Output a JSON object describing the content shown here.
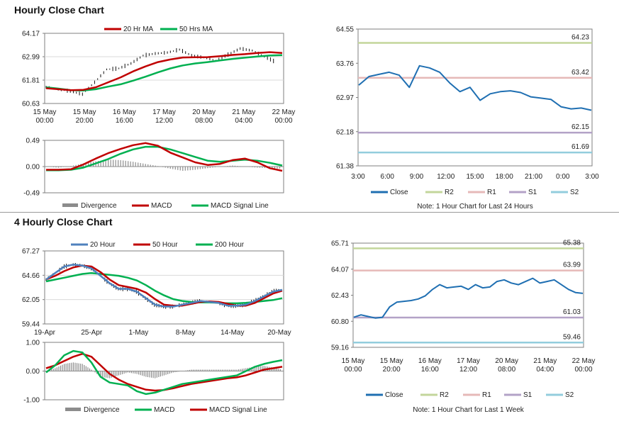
{
  "sections": {
    "hourly_title": "Hourly Close Chart",
    "four_hourly_title": "4 Hourly Close Chart"
  },
  "colors": {
    "close": "#1f6fb2",
    "r2": "#c3d69b",
    "r1": "#e6b9b8",
    "s1": "#b3a2c7",
    "s2": "#93cddd",
    "ma_short": "#c00000",
    "ma_long": "#00b050",
    "ma_20h_4h": "#4f81bd",
    "divergence": "#8c8c8c",
    "macd_red": "#c00000",
    "signal_green": "#00b050"
  },
  "chart_data": [
    {
      "id": "hourly-price",
      "type": "line",
      "title": "",
      "series": [
        {
          "name": "20 Hr MA",
          "values": [
            61.4,
            61.35,
            61.3,
            61.32,
            61.45,
            61.7,
            61.95,
            62.25,
            62.5,
            62.72,
            62.85,
            62.95,
            62.96,
            62.97,
            63.02,
            63.08,
            63.12,
            63.18,
            63.22,
            63.18
          ]
        },
        {
          "name": "50 Hrs MA",
          "values": [
            61.45,
            61.38,
            61.3,
            61.28,
            61.35,
            61.48,
            61.6,
            61.78,
            61.98,
            62.2,
            62.4,
            62.55,
            62.65,
            62.72,
            62.8,
            62.88,
            62.94,
            63.0,
            63.05,
            63.07
          ]
        }
      ],
      "price_close": [
        61.45,
        61.35,
        61.25,
        61.1,
        61.7,
        62.35,
        62.4,
        62.65,
        63.05,
        63.15,
        63.2,
        63.35,
        63.05,
        62.95,
        62.8,
        63.1,
        63.4,
        63.3,
        63.0,
        62.7
      ],
      "x_tick_labels": [
        "15 May\n00:00",
        "15 May\n20:00",
        "16 May\n16:00",
        "17 May\n12:00",
        "20 May\n08:00",
        "21 May\n04:00",
        "22 May\n00:00"
      ],
      "y_tick_labels": [
        "64.17",
        "62.99",
        "61.81",
        "60.63"
      ],
      "ylim": [
        60.63,
        64.17
      ]
    },
    {
      "id": "hourly-macd",
      "type": "line",
      "series": [
        {
          "name": "Divergence",
          "values": [
            0.0,
            -0.02,
            0.01,
            0.06,
            0.1,
            0.13,
            0.12,
            0.09,
            0.05,
            0.01,
            -0.04,
            -0.08,
            -0.06,
            -0.03,
            0.0,
            0.02,
            0.0,
            -0.02,
            -0.03,
            -0.04
          ]
        },
        {
          "name": "MACD",
          "values": [
            -0.06,
            -0.06,
            -0.05,
            0.04,
            0.15,
            0.25,
            0.33,
            0.4,
            0.44,
            0.39,
            0.26,
            0.17,
            0.08,
            0.03,
            0.05,
            0.12,
            0.15,
            0.08,
            -0.03,
            -0.08
          ]
        },
        {
          "name": "MACD Signal Line",
          "values": [
            -0.07,
            -0.07,
            -0.06,
            -0.02,
            0.06,
            0.14,
            0.24,
            0.32,
            0.37,
            0.37,
            0.32,
            0.25,
            0.18,
            0.11,
            0.09,
            0.11,
            0.13,
            0.11,
            0.07,
            0.02
          ]
        }
      ],
      "y_tick_labels": [
        "0.49",
        "0.00",
        "-0.49"
      ],
      "ylim": [
        -0.49,
        0.49
      ]
    },
    {
      "id": "hourly-close-24h",
      "type": "line",
      "series": [
        {
          "name": "Close",
          "values": [
            63.25,
            63.45,
            63.5,
            63.55,
            63.48,
            63.2,
            63.7,
            63.65,
            63.55,
            63.3,
            63.1,
            63.2,
            62.9,
            63.05,
            63.1,
            63.12,
            63.08,
            62.98,
            62.95,
            62.92,
            62.75,
            62.7,
            62.72,
            62.67
          ]
        }
      ],
      "levels": [
        {
          "name": "R2",
          "value": 64.23,
          "label": "64.23"
        },
        {
          "name": "R1",
          "value": 63.42,
          "label": "63.42"
        },
        {
          "name": "S1",
          "value": 62.15,
          "label": "62.15"
        },
        {
          "name": "S2",
          "value": 61.69,
          "label": "61.69"
        }
      ],
      "x_tick_labels": [
        "3:00",
        "6:00",
        "9:00",
        "12:00",
        "15:00",
        "18:00",
        "21:00",
        "0:00",
        "3:00"
      ],
      "y_tick_labels": [
        "64.55",
        "63.76",
        "62.97",
        "62.18",
        "61.38"
      ],
      "ylim": [
        61.38,
        64.55
      ],
      "legend": [
        "Close",
        "R2",
        "R1",
        "S1",
        "S2"
      ],
      "note": "Note: 1 Hour Chart for Last 24 Hours"
    },
    {
      "id": "four-hourly-price",
      "type": "line",
      "series": [
        {
          "name": "20 Hour",
          "values": [
            64.2,
            64.9,
            65.6,
            65.8,
            65.7,
            65.4,
            64.6,
            63.8,
            63.2,
            63.2,
            62.9,
            62.2,
            61.5,
            61.3,
            61.3,
            61.5,
            61.7,
            61.9,
            61.8,
            61.7,
            61.4,
            61.4,
            61.5,
            61.9,
            62.4,
            62.9,
            63.1
          ]
        },
        {
          "name": "50 Hour",
          "values": [
            64.2,
            64.6,
            65.1,
            65.5,
            65.7,
            65.6,
            65.0,
            64.2,
            63.6,
            63.4,
            63.2,
            62.8,
            62.1,
            61.5,
            61.4,
            61.4,
            61.6,
            61.8,
            61.85,
            61.8,
            61.6,
            61.4,
            61.4,
            61.7,
            62.2,
            62.7,
            63.0
          ]
        },
        {
          "name": "200 Hour",
          "values": [
            64.0,
            64.2,
            64.4,
            64.6,
            64.8,
            64.9,
            64.8,
            64.7,
            64.6,
            64.4,
            64.1,
            63.6,
            63.0,
            62.5,
            62.1,
            61.9,
            61.8,
            61.75,
            61.75,
            61.7,
            61.65,
            61.65,
            61.7,
            61.8,
            61.9,
            62.0,
            62.2
          ]
        }
      ],
      "x_tick_labels": [
        "19-Apr",
        "25-Apr",
        "1-May",
        "8-May",
        "14-May",
        "20-May"
      ],
      "y_tick_labels": [
        "67.27",
        "64.66",
        "62.05",
        "59.44"
      ],
      "ylim": [
        59.44,
        67.27
      ]
    },
    {
      "id": "four-hourly-macd",
      "type": "line",
      "series": [
        {
          "name": "Divergence",
          "values": [
            0.0,
            0.1,
            0.25,
            0.3,
            0.25,
            0.05,
            -0.2,
            -0.25,
            -0.15,
            -0.05,
            -0.1,
            -0.2,
            -0.25,
            -0.15,
            -0.05,
            0.0,
            0.05,
            0.05,
            0.05,
            0.05,
            0.05,
            0.05,
            0.1,
            0.15,
            0.18,
            0.12,
            0.05
          ]
        },
        {
          "name": "MACD",
          "values": [
            -0.05,
            0.2,
            0.55,
            0.7,
            0.65,
            0.3,
            -0.2,
            -0.4,
            -0.45,
            -0.5,
            -0.7,
            -0.8,
            -0.75,
            -0.65,
            -0.55,
            -0.45,
            -0.4,
            -0.35,
            -0.3,
            -0.25,
            -0.2,
            -0.15,
            0.0,
            0.15,
            0.25,
            0.32,
            0.38
          ]
        },
        {
          "name": "MACD Signal Line",
          "values": [
            0.1,
            0.2,
            0.35,
            0.5,
            0.6,
            0.5,
            0.2,
            -0.1,
            -0.3,
            -0.45,
            -0.55,
            -0.65,
            -0.68,
            -0.66,
            -0.6,
            -0.52,
            -0.45,
            -0.4,
            -0.35,
            -0.3,
            -0.25,
            -0.22,
            -0.15,
            -0.05,
            0.05,
            0.1,
            0.15
          ]
        }
      ],
      "y_tick_labels": [
        "1.00",
        "0.00",
        "-1.00"
      ],
      "ylim": [
        -1.0,
        1.0
      ]
    },
    {
      "id": "hourly-close-1w",
      "type": "line",
      "series": [
        {
          "name": "Close",
          "values": [
            61.05,
            61.2,
            61.1,
            61.0,
            61.05,
            61.7,
            62.0,
            62.05,
            62.1,
            62.2,
            62.4,
            62.8,
            63.1,
            62.9,
            62.95,
            63.0,
            62.8,
            63.1,
            62.9,
            62.95,
            63.3,
            63.4,
            63.2,
            63.1,
            63.3,
            63.5,
            63.2,
            63.3,
            63.4,
            63.1,
            62.8,
            62.6,
            62.55
          ]
        }
      ],
      "levels": [
        {
          "name": "R2",
          "value": 65.38,
          "label": "65.38"
        },
        {
          "name": "R1",
          "value": 63.99,
          "label": "63.99"
        },
        {
          "name": "S1",
          "value": 61.03,
          "label": "61.03"
        },
        {
          "name": "S2",
          "value": 59.46,
          "label": "59.46"
        }
      ],
      "x_tick_labels": [
        "15 May\n00:00",
        "15 May\n20:00",
        "16 May\n16:00",
        "17 May\n12:00",
        "20 May\n08:00",
        "21 May\n04:00",
        "22 May\n00:00"
      ],
      "y_tick_labels": [
        "65.71",
        "64.07",
        "62.43",
        "60.80",
        "59.16"
      ],
      "ylim": [
        59.16,
        65.71
      ],
      "legend": [
        "Close",
        "R2",
        "R1",
        "S1",
        "S2"
      ],
      "note": "Note: 1 Hour Chart for Last 1 Week"
    }
  ]
}
